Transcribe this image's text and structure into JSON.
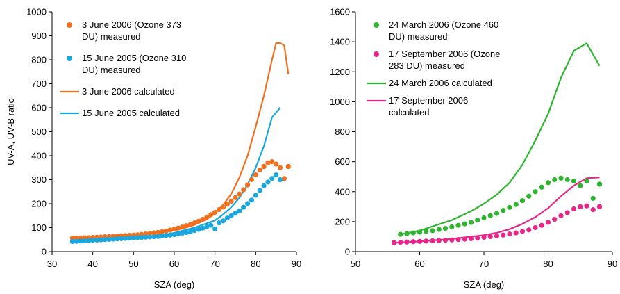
{
  "chart_data": [
    {
      "type": "scatter",
      "xlabel": "SZA (deg)",
      "ylabel": "UV-A, UV-B ratio",
      "xlim": [
        30,
        90
      ],
      "ylim": [
        0,
        1000
      ],
      "xticks": [
        30,
        40,
        50,
        60,
        70,
        80,
        90
      ],
      "yticks": [
        0,
        100,
        200,
        300,
        400,
        500,
        600,
        700,
        800,
        900,
        1000
      ],
      "grid": false,
      "legend_position": "top-left",
      "series": [
        {
          "name": "3 June 2006 (Ozone 373 DU) measured",
          "legend_lines": [
            "3 June 2006 (Ozone 373",
            "DU) measured"
          ],
          "kind": "points",
          "color": "#f07020",
          "x": [
            35,
            36,
            37,
            38,
            39,
            40,
            41,
            42,
            43,
            44,
            45,
            46,
            47,
            48,
            49,
            50,
            51,
            52,
            53,
            54,
            55,
            56,
            57,
            58,
            59,
            60,
            61,
            62,
            63,
            64,
            65,
            66,
            67,
            68,
            69,
            70,
            71,
            72,
            73,
            74,
            75,
            76,
            77,
            78,
            79,
            80,
            81,
            82,
            83,
            84,
            85,
            86,
            87,
            88
          ],
          "y": [
            56,
            57,
            57,
            58,
            58,
            59,
            60,
            61,
            62,
            63,
            64,
            65,
            66,
            67,
            68,
            69,
            70,
            72,
            74,
            76,
            78,
            80,
            83,
            86,
            90,
            94,
            98,
            103,
            108,
            114,
            120,
            127,
            135,
            144,
            154,
            164,
            175,
            186,
            198,
            210,
            225,
            240,
            258,
            278,
            300,
            320,
            340,
            355,
            370,
            375,
            365,
            350,
            305,
            355
          ]
        },
        {
          "name": "15 June 2005 (Ozone 310 DU) measured",
          "legend_lines": [
            "15 June 2005 (Ozone 310",
            "DU) measured"
          ],
          "kind": "points",
          "color": "#1aa7dd",
          "x": [
            35,
            36,
            37,
            38,
            39,
            40,
            41,
            42,
            43,
            44,
            45,
            46,
            47,
            48,
            49,
            50,
            51,
            52,
            53,
            54,
            55,
            56,
            57,
            58,
            59,
            60,
            61,
            62,
            63,
            64,
            65,
            66,
            67,
            68,
            69,
            70,
            71,
            72,
            73,
            74,
            75,
            76,
            77,
            78,
            79,
            80,
            81,
            82,
            83,
            84,
            85,
            86
          ],
          "y": [
            42,
            43,
            44,
            45,
            46,
            47,
            48,
            49,
            50,
            51,
            52,
            53,
            54,
            55,
            56,
            57,
            58,
            59,
            60,
            61,
            62,
            63,
            65,
            67,
            69,
            71,
            74,
            77,
            80,
            84,
            88,
            93,
            98,
            104,
            110,
            95,
            120,
            128,
            140,
            150,
            160,
            170,
            185,
            200,
            215,
            235,
            255,
            275,
            290,
            305,
            320,
            300
          ]
        },
        {
          "name": "3 June 2006 calculated",
          "kind": "line",
          "color": "#f07020",
          "x": [
            35,
            40,
            45,
            50,
            55,
            60,
            62,
            65,
            68,
            70,
            72,
            74,
            76,
            78,
            80,
            82,
            84,
            85,
            86,
            87,
            88
          ],
          "y": [
            55,
            58,
            62,
            68,
            76,
            88,
            96,
            112,
            135,
            160,
            195,
            240,
            310,
            400,
            520,
            650,
            800,
            870,
            870,
            860,
            740
          ]
        },
        {
          "name": "15 June 2005 calculated",
          "kind": "line",
          "color": "#1aa7dd",
          "x": [
            35,
            40,
            45,
            50,
            55,
            60,
            65,
            70,
            72,
            74,
            76,
            78,
            80,
            82,
            84,
            86
          ],
          "y": [
            42,
            45,
            50,
            56,
            65,
            78,
            100,
            130,
            155,
            185,
            225,
            280,
            350,
            440,
            560,
            600
          ]
        }
      ],
      "legend_items": [
        {
          "series": 0
        },
        {
          "series": 1
        },
        {
          "series": 2
        },
        {
          "series": 3
        }
      ]
    },
    {
      "type": "scatter",
      "xlabel": "SZA (deg)",
      "ylabel": "",
      "xlim": [
        50,
        90
      ],
      "ylim": [
        0,
        1600
      ],
      "xticks": [
        50,
        60,
        70,
        80,
        90
      ],
      "yticks": [
        0,
        200,
        400,
        600,
        800,
        1000,
        1200,
        1400,
        1600
      ],
      "grid": false,
      "legend_position": "top-left",
      "series": [
        {
          "name": "24 March 2006 (Ozone 460 DU) measured",
          "legend_lines": [
            "24 March 2006 (Ozone 460",
            "DU) measured"
          ],
          "kind": "points",
          "color": "#2db52d",
          "x": [
            57,
            58,
            59,
            60,
            61,
            62,
            63,
            64,
            65,
            66,
            67,
            68,
            69,
            70,
            71,
            72,
            73,
            74,
            75,
            76,
            77,
            78,
            79,
            80,
            81,
            82,
            83,
            84,
            85,
            86,
            87,
            88
          ],
          "y": [
            115,
            120,
            125,
            130,
            135,
            140,
            148,
            155,
            165,
            175,
            185,
            195,
            210,
            225,
            240,
            255,
            275,
            295,
            315,
            340,
            370,
            400,
            430,
            460,
            480,
            490,
            480,
            470,
            440,
            470,
            355,
            450
          ]
        },
        {
          "name": "17 September 2006 (Ozone 283 DU) measured",
          "legend_lines": [
            "17 September 2006 (Ozone",
            "283 DU) measured"
          ],
          "kind": "points",
          "color": "#e8268a",
          "x": [
            56,
            57,
            58,
            59,
            60,
            61,
            62,
            63,
            64,
            65,
            66,
            67,
            68,
            69,
            70,
            71,
            72,
            73,
            74,
            75,
            76,
            77,
            78,
            79,
            80,
            81,
            82,
            83,
            84,
            85,
            86,
            87,
            88
          ],
          "y": [
            60,
            62,
            64,
            66,
            68,
            70,
            72,
            74,
            76,
            78,
            80,
            83,
            86,
            90,
            95,
            100,
            105,
            110,
            118,
            125,
            135,
            145,
            160,
            175,
            195,
            215,
            240,
            260,
            285,
            300,
            305,
            280,
            300
          ]
        },
        {
          "name": "24 March 2006 calculated",
          "kind": "line",
          "color": "#2db52d",
          "x": [
            57,
            60,
            65,
            68,
            70,
            72,
            74,
            76,
            78,
            80,
            82,
            84,
            86,
            88
          ],
          "y": [
            115,
            140,
            210,
            270,
            320,
            380,
            460,
            580,
            740,
            920,
            1160,
            1340,
            1390,
            1240
          ]
        },
        {
          "name": "17 September 2006 calculated",
          "legend_lines": [
            "17 September 2006",
            "calculated"
          ],
          "kind": "line",
          "color": "#e8268a",
          "x": [
            56,
            60,
            65,
            70,
            72,
            74,
            76,
            78,
            80,
            82,
            84,
            86,
            88
          ],
          "y": [
            58,
            68,
            85,
            110,
            125,
            150,
            185,
            230,
            290,
            370,
            440,
            490,
            495
          ]
        }
      ],
      "legend_items": [
        {
          "series": 0
        },
        {
          "series": 1
        },
        {
          "series": 2
        },
        {
          "series": 3
        }
      ]
    }
  ]
}
